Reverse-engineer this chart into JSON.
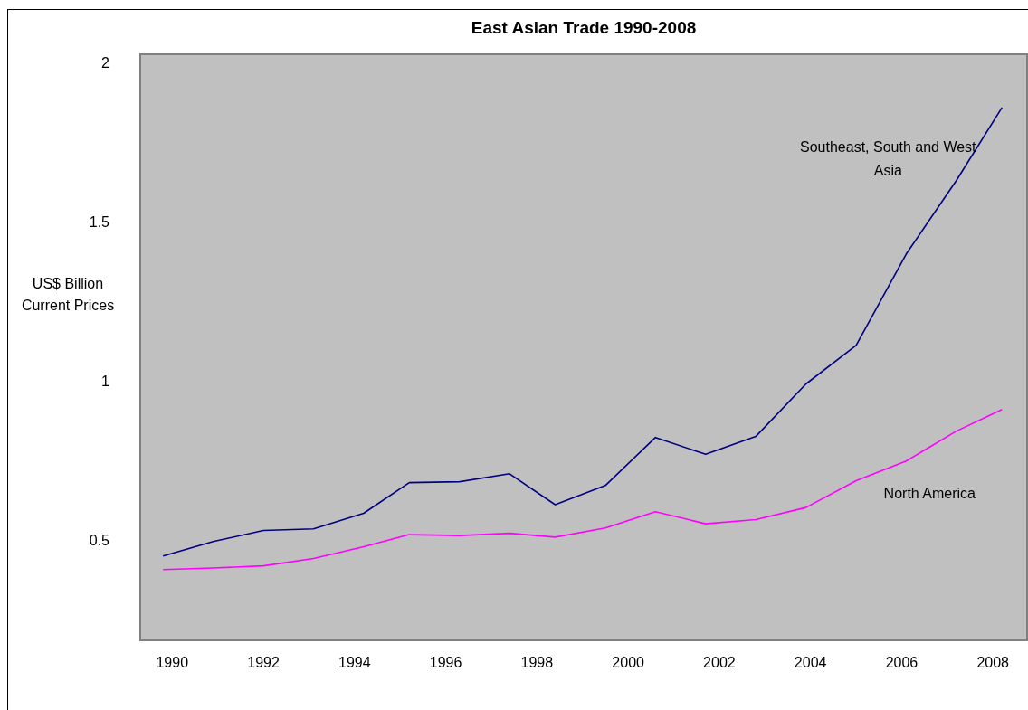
{
  "chart_data": {
    "type": "line",
    "title": "East Asian Trade 1990-2008",
    "ylabel": "US$ Billion Current Prices",
    "xlim": [
      1989.3,
      2008.75
    ],
    "xticks": [
      1990,
      1992,
      1994,
      1996,
      1998,
      2000,
      2002,
      2004,
      2006,
      2008
    ],
    "ylim": [
      0.19,
      2.03
    ],
    "yticks": [
      0.5,
      1,
      1.5,
      2
    ],
    "grid": false,
    "legend": false,
    "marker": "none",
    "line_style": "solid",
    "series": [
      {
        "name": "Southeast, South and West Asia",
        "color": "#000080",
        "x": [
          1989.8,
          1990.9,
          1992.0,
          1993.1,
          1994.2,
          1995.2,
          1996.3,
          1997.4,
          1998.4,
          1999.5,
          2000.6,
          2001.7,
          2002.8,
          2003.9,
          2005.0,
          2006.1,
          2007.2,
          2008.2
        ],
        "values": [
          0.455,
          0.5,
          0.535,
          0.54,
          0.589,
          0.685,
          0.688,
          0.713,
          0.616,
          0.676,
          0.827,
          0.774,
          0.83,
          0.995,
          1.116,
          1.403,
          1.634,
          1.863
        ]
      },
      {
        "name": "North America",
        "color": "#ff00ff",
        "x": [
          1989.8,
          1990.9,
          1992.0,
          1993.1,
          1994.2,
          1995.2,
          1996.3,
          1997.4,
          1998.4,
          1999.5,
          2000.6,
          2001.7,
          2002.8,
          2003.9,
          2005.0,
          2006.1,
          2007.2,
          2008.2
        ],
        "values": [
          0.412,
          0.417,
          0.424,
          0.447,
          0.484,
          0.522,
          0.519,
          0.526,
          0.514,
          0.543,
          0.594,
          0.556,
          0.569,
          0.607,
          0.691,
          0.753,
          0.847,
          0.915
        ]
      }
    ]
  }
}
